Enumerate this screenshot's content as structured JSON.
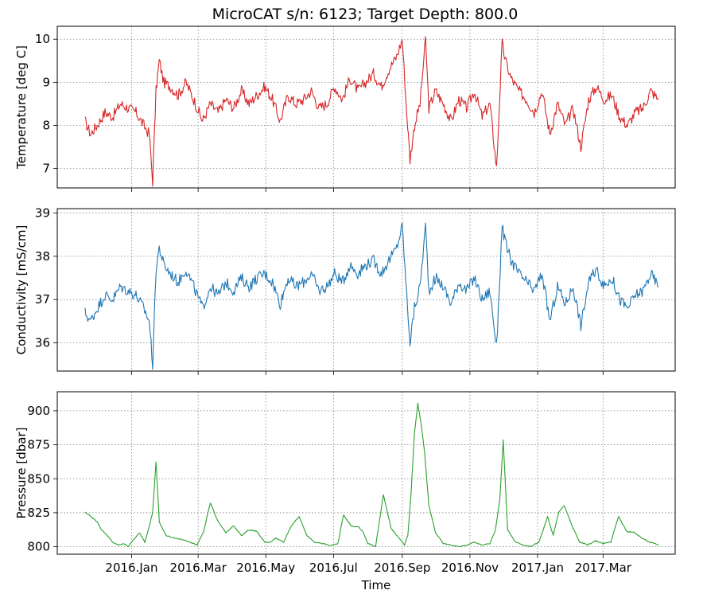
{
  "chart_data": {
    "type": "line",
    "title": "MicroCAT s/n: 6123; Target Depth: 800.0",
    "xlabel": "Time",
    "x_tick_labels": [
      "2016.Jan",
      "2016.Mar",
      "2016.May",
      "2016.Jul",
      "2016.Sep",
      "2016.Nov",
      "2017.Jan",
      "2017.Mar"
    ],
    "x_ticks": [
      "2016-01-01",
      "2016-03-01",
      "2016-05-01",
      "2016-07-01",
      "2016-09-01",
      "2016-11-01",
      "2017-01-01",
      "2017-03-01"
    ],
    "x_range": [
      "2015-10-26",
      "2017-05-05"
    ],
    "grid": true,
    "panels": [
      {
        "ylabel": "Temperature [deg C]",
        "color": "#d62728",
        "ylim": [
          6.55,
          10.3
        ],
        "y_ticks": [
          7,
          8,
          9,
          10
        ],
        "series": {
          "x": [
            "2015-11-20",
            "2015-11-25",
            "2015-12-01",
            "2015-12-08",
            "2015-12-15",
            "2015-12-22",
            "2015-12-29",
            "2016-01-05",
            "2016-01-12",
            "2016-01-17",
            "2016-01-20",
            "2016-01-23",
            "2016-01-26",
            "2016-01-30",
            "2016-02-05",
            "2016-02-12",
            "2016-02-19",
            "2016-02-26",
            "2016-03-05",
            "2016-03-12",
            "2016-03-19",
            "2016-03-26",
            "2016-04-02",
            "2016-04-09",
            "2016-04-16",
            "2016-04-23",
            "2016-04-30",
            "2016-05-07",
            "2016-05-14",
            "2016-05-21",
            "2016-05-28",
            "2016-06-04",
            "2016-06-11",
            "2016-06-18",
            "2016-06-25",
            "2016-07-02",
            "2016-07-09",
            "2016-07-16",
            "2016-07-23",
            "2016-07-30",
            "2016-08-06",
            "2016-08-13",
            "2016-08-20",
            "2016-08-27",
            "2016-09-01",
            "2016-09-05",
            "2016-09-08",
            "2016-09-12",
            "2016-09-17",
            "2016-09-22",
            "2016-09-25",
            "2016-10-01",
            "2016-10-08",
            "2016-10-15",
            "2016-10-22",
            "2016-10-29",
            "2016-11-05",
            "2016-11-12",
            "2016-11-19",
            "2016-11-25",
            "2016-11-30",
            "2016-12-03",
            "2016-12-08",
            "2016-12-15",
            "2016-12-22",
            "2016-12-29",
            "2017-01-05",
            "2017-01-12",
            "2017-01-19",
            "2017-01-26",
            "2017-02-02",
            "2017-02-09",
            "2017-02-16",
            "2017-02-23",
            "2017-03-02",
            "2017-03-09",
            "2017-03-16",
            "2017-03-23",
            "2017-03-30",
            "2017-04-06",
            "2017-04-13",
            "2017-04-20"
          ],
          "y": [
            8.1,
            7.8,
            8.0,
            8.3,
            8.2,
            8.5,
            8.4,
            8.3,
            8.0,
            7.8,
            6.7,
            8.8,
            9.5,
            9.0,
            8.9,
            8.7,
            9.0,
            8.6,
            8.1,
            8.5,
            8.3,
            8.6,
            8.4,
            8.8,
            8.5,
            8.7,
            8.9,
            8.6,
            8.1,
            8.7,
            8.5,
            8.6,
            8.8,
            8.4,
            8.5,
            8.9,
            8.6,
            9.1,
            8.8,
            9.0,
            9.2,
            8.9,
            9.3,
            9.6,
            10.0,
            8.3,
            7.2,
            8.0,
            8.5,
            10.0,
            8.4,
            8.8,
            8.5,
            8.1,
            8.6,
            8.4,
            8.8,
            8.2,
            8.5,
            7.0,
            9.9,
            9.5,
            9.1,
            8.8,
            8.6,
            8.3,
            8.8,
            7.8,
            8.5,
            8.0,
            8.4,
            7.5,
            8.6,
            8.9,
            8.6,
            8.7,
            8.2,
            8.0,
            8.3,
            8.4,
            8.8,
            8.6
          ]
        }
      },
      {
        "ylabel": "Conductivity [mS/cm]",
        "color": "#1f77b4",
        "ylim": [
          35.35,
          39.1
        ],
        "y_ticks": [
          36,
          37,
          38,
          39
        ],
        "series": {
          "x": [
            "2015-11-20",
            "2015-11-25",
            "2015-12-01",
            "2015-12-08",
            "2015-12-15",
            "2015-12-22",
            "2015-12-29",
            "2016-01-05",
            "2016-01-12",
            "2016-01-17",
            "2016-01-20",
            "2016-01-23",
            "2016-01-26",
            "2016-01-30",
            "2016-02-05",
            "2016-02-12",
            "2016-02-19",
            "2016-02-26",
            "2016-03-05",
            "2016-03-12",
            "2016-03-19",
            "2016-03-26",
            "2016-04-02",
            "2016-04-09",
            "2016-04-16",
            "2016-04-23",
            "2016-04-30",
            "2016-05-07",
            "2016-05-14",
            "2016-05-21",
            "2016-05-28",
            "2016-06-04",
            "2016-06-11",
            "2016-06-18",
            "2016-06-25",
            "2016-07-02",
            "2016-07-09",
            "2016-07-16",
            "2016-07-23",
            "2016-07-30",
            "2016-08-06",
            "2016-08-13",
            "2016-08-20",
            "2016-08-27",
            "2016-09-01",
            "2016-09-05",
            "2016-09-08",
            "2016-09-12",
            "2016-09-17",
            "2016-09-22",
            "2016-09-25",
            "2016-10-01",
            "2016-10-08",
            "2016-10-15",
            "2016-10-22",
            "2016-10-29",
            "2016-11-05",
            "2016-11-12",
            "2016-11-19",
            "2016-11-25",
            "2016-11-30",
            "2016-12-03",
            "2016-12-08",
            "2016-12-15",
            "2016-12-22",
            "2016-12-29",
            "2017-01-05",
            "2017-01-12",
            "2017-01-19",
            "2017-01-26",
            "2017-02-02",
            "2017-02-09",
            "2017-02-16",
            "2017-02-23",
            "2017-03-02",
            "2017-03-09",
            "2017-03-16",
            "2017-03-23",
            "2017-03-30",
            "2017-04-06",
            "2017-04-13",
            "2017-04-20"
          ],
          "y": [
            36.7,
            36.5,
            36.8,
            37.1,
            37.0,
            37.3,
            37.2,
            37.1,
            36.8,
            36.5,
            35.5,
            37.7,
            38.2,
            37.8,
            37.6,
            37.4,
            37.7,
            37.3,
            36.8,
            37.3,
            37.1,
            37.4,
            37.2,
            37.5,
            37.3,
            37.5,
            37.6,
            37.4,
            36.9,
            37.5,
            37.3,
            37.4,
            37.6,
            37.2,
            37.3,
            37.6,
            37.4,
            37.8,
            37.6,
            37.8,
            37.9,
            37.6,
            37.9,
            38.2,
            38.7,
            37.1,
            36.0,
            36.8,
            37.3,
            38.7,
            37.2,
            37.5,
            37.3,
            36.9,
            37.4,
            37.2,
            37.5,
            37.0,
            37.2,
            35.9,
            38.7,
            38.3,
            37.9,
            37.6,
            37.4,
            37.2,
            37.6,
            36.5,
            37.3,
            36.9,
            37.3,
            36.4,
            37.4,
            37.7,
            37.3,
            37.5,
            37.0,
            36.8,
            37.1,
            37.2,
            37.6,
            37.3
          ]
        }
      },
      {
        "ylabel": "Pressure [dbar]",
        "color": "#2ca02c",
        "ylim": [
          794.5,
          914
        ],
        "y_ticks": [
          800,
          825,
          850,
          875,
          900
        ],
        "series": {
          "x": [
            "2015-11-20",
            "2015-11-25",
            "2015-12-01",
            "2015-12-05",
            "2015-12-10",
            "2015-12-15",
            "2015-12-20",
            "2015-12-25",
            "2015-12-29",
            "2016-01-03",
            "2016-01-08",
            "2016-01-13",
            "2016-01-17",
            "2016-01-20",
            "2016-01-23",
            "2016-01-26",
            "2016-02-01",
            "2016-02-08",
            "2016-02-15",
            "2016-02-22",
            "2016-02-29",
            "2016-03-06",
            "2016-03-12",
            "2016-03-19",
            "2016-03-26",
            "2016-04-02",
            "2016-04-09",
            "2016-04-16",
            "2016-04-23",
            "2016-04-30",
            "2016-05-05",
            "2016-05-10",
            "2016-05-17",
            "2016-05-24",
            "2016-05-31",
            "2016-06-07",
            "2016-06-14",
            "2016-06-21",
            "2016-06-26",
            "2016-06-30",
            "2016-07-05",
            "2016-07-10",
            "2016-07-17",
            "2016-07-24",
            "2016-07-28",
            "2016-08-01",
            "2016-08-08",
            "2016-08-15",
            "2016-08-22",
            "2016-08-29",
            "2016-09-03",
            "2016-09-06",
            "2016-09-09",
            "2016-09-12",
            "2016-09-15",
            "2016-09-18",
            "2016-09-21",
            "2016-09-25",
            "2016-10-01",
            "2016-10-08",
            "2016-10-15",
            "2016-10-22",
            "2016-10-29",
            "2016-11-05",
            "2016-11-12",
            "2016-11-19",
            "2016-11-24",
            "2016-11-28",
            "2016-12-01",
            "2016-12-05",
            "2016-12-12",
            "2016-12-19",
            "2016-12-26",
            "2017-01-02",
            "2017-01-06",
            "2017-01-10",
            "2017-01-15",
            "2017-01-20",
            "2017-01-25",
            "2017-02-01",
            "2017-02-08",
            "2017-02-15",
            "2017-02-22",
            "2017-03-01",
            "2017-03-08",
            "2017-03-15",
            "2017-03-22",
            "2017-03-29",
            "2017-04-05",
            "2017-04-12",
            "2017-04-20"
          ],
          "y": [
            825,
            822,
            818,
            812,
            808,
            803,
            801,
            802,
            800,
            805,
            810,
            803,
            815,
            825,
            862,
            818,
            808,
            806,
            805,
            803,
            801,
            811,
            832,
            818,
            810,
            815,
            808,
            812,
            811,
            803,
            803,
            806,
            803,
            815,
            822,
            808,
            803,
            802,
            801,
            801,
            802,
            823,
            815,
            814,
            810,
            802,
            800,
            838,
            813,
            806,
            801,
            808,
            840,
            883,
            905,
            890,
            870,
            830,
            810,
            802,
            801,
            800,
            801,
            803,
            801,
            802,
            812,
            835,
            878,
            812,
            803,
            801,
            800,
            803,
            812,
            822,
            808,
            825,
            830,
            815,
            803,
            801,
            804,
            802,
            803,
            822,
            811,
            810,
            806,
            803,
            801
          ]
        }
      }
    ]
  }
}
